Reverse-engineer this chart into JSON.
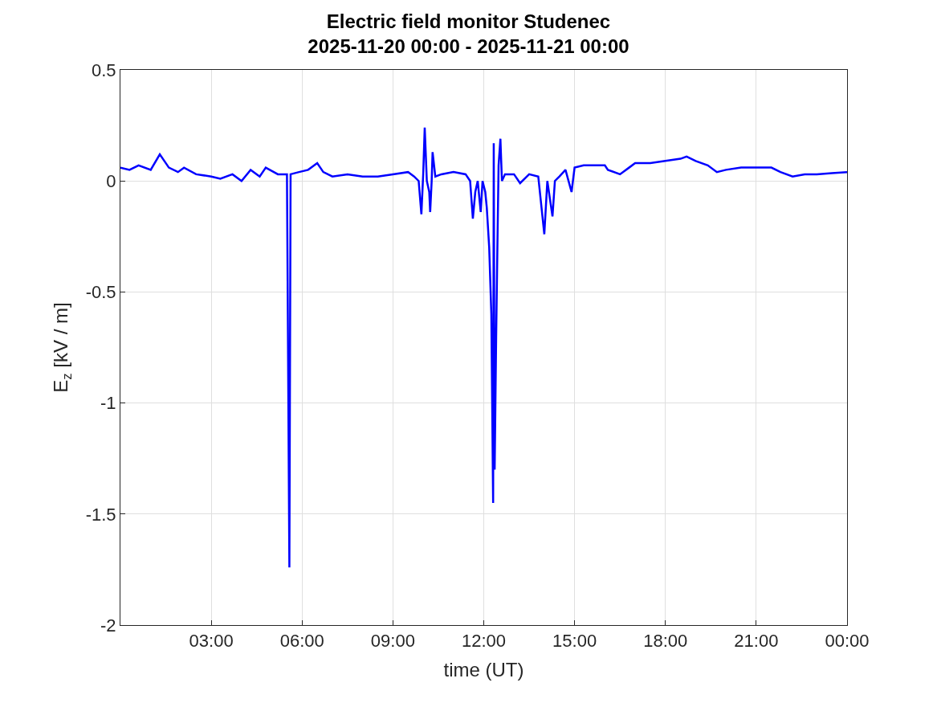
{
  "chart_data": {
    "type": "line",
    "title": "Electric field monitor Studenec\n2025-11-20 00:00 - 2025-11-21 00:00",
    "xlabel": "time (UT)",
    "ylabel": "E$_{z}$ [kV / m]",
    "x": [
      0,
      0.3,
      0.6,
      1.0,
      1.3,
      1.6,
      1.9,
      2.1,
      2.5,
      3.0,
      3.3,
      3.7,
      4.0,
      4.3,
      4.6,
      4.8,
      5.2,
      5.5,
      5.58,
      5.62,
      5.9,
      6.2,
      6.5,
      6.7,
      7.0,
      7.5,
      8.0,
      8.5,
      9.0,
      9.5,
      9.7,
      9.85,
      9.94,
      10.0,
      10.05,
      10.12,
      10.2,
      10.23,
      10.28,
      10.31,
      10.4,
      10.6,
      11.0,
      11.4,
      11.55,
      11.64,
      11.72,
      11.8,
      11.9,
      11.96,
      12.05,
      12.1,
      12.18,
      12.25,
      12.31,
      12.33,
      12.36,
      12.41,
      12.45,
      12.49,
      12.55,
      12.6,
      12.7,
      13.0,
      13.2,
      13.5,
      13.8,
      14.0,
      14.1,
      14.27,
      14.35,
      14.5,
      14.7,
      14.9,
      15.0,
      15.3,
      16.0,
      16.1,
      16.5,
      16.8,
      17.0,
      17.5,
      18.0,
      18.5,
      18.7,
      19.0,
      19.4,
      19.7,
      20.0,
      20.5,
      21.0,
      21.5,
      21.8,
      22.2,
      22.6,
      23.0,
      23.5,
      24.0
    ],
    "series": [
      {
        "color": "#0000ff",
        "values": [
          0.06,
          0.05,
          0.07,
          0.05,
          0.12,
          0.06,
          0.04,
          0.06,
          0.03,
          0.02,
          0.01,
          0.03,
          0.0,
          0.05,
          0.02,
          0.06,
          0.03,
          0.03,
          -1.74,
          0.03,
          0.04,
          0.05,
          0.08,
          0.04,
          0.02,
          0.03,
          0.02,
          0.02,
          0.03,
          0.04,
          0.02,
          0.0,
          -0.15,
          0.03,
          0.24,
          0.0,
          -0.05,
          -0.14,
          0.0,
          0.13,
          0.02,
          0.03,
          0.04,
          0.03,
          0.0,
          -0.17,
          -0.05,
          0.0,
          -0.14,
          0.0,
          -0.05,
          -0.12,
          -0.3,
          -0.6,
          -1.45,
          0.17,
          -1.3,
          -0.7,
          -0.3,
          0.07,
          0.19,
          0.0,
          0.03,
          0.03,
          -0.01,
          0.03,
          0.02,
          -0.24,
          0.0,
          -0.16,
          0.0,
          0.02,
          0.05,
          -0.05,
          0.06,
          0.07,
          0.07,
          0.05,
          0.03,
          0.06,
          0.08,
          0.08,
          0.09,
          0.1,
          0.11,
          0.09,
          0.07,
          0.04,
          0.05,
          0.06,
          0.06,
          0.06,
          0.04,
          0.02,
          0.03,
          0.03,
          0.035,
          0.04
        ]
      }
    ],
    "xlim": [
      0,
      24
    ],
    "xticks": [
      {
        "value": 3,
        "label": "03:00"
      },
      {
        "value": 6,
        "label": "06:00"
      },
      {
        "value": 9,
        "label": "09:00"
      },
      {
        "value": 12,
        "label": "12:00"
      },
      {
        "value": 15,
        "label": "15:00"
      },
      {
        "value": 18,
        "label": "18:00"
      },
      {
        "value": 21,
        "label": "21:00"
      },
      {
        "value": 24,
        "label": "00:00"
      }
    ],
    "ylim": [
      -2,
      0.5
    ],
    "yticks": [
      -2,
      -1.5,
      -1,
      -0.5,
      0,
      0.5
    ],
    "grid": true,
    "marker": "none",
    "line_style": "solid"
  }
}
